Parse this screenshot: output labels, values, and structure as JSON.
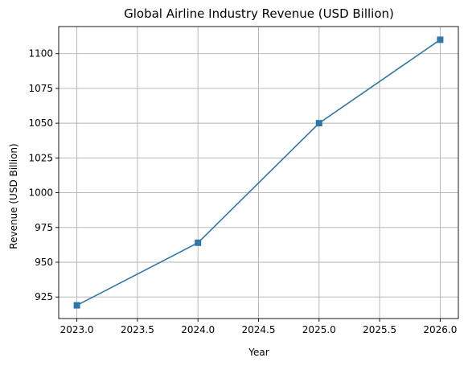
{
  "chart_data": {
    "type": "line",
    "title": "Global Airline Industry Revenue (USD Billion)",
    "xlabel": "Year",
    "ylabel": "Revenue (USD Billion)",
    "x": [
      2023,
      2024,
      2025,
      2026
    ],
    "series": [
      {
        "values": [
          919,
          964,
          1050,
          1110
        ],
        "color": "#2e77a8",
        "marker": "square"
      }
    ],
    "xlim": [
      2022.85,
      2026.15
    ],
    "ylim": [
      909.5,
      1119.5
    ],
    "xticks": [
      2023.0,
      2023.5,
      2024.0,
      2024.5,
      2025.0,
      2025.5,
      2026.0
    ],
    "xtick_labels": [
      "2023.0",
      "2023.5",
      "2024.0",
      "2024.5",
      "2025.0",
      "2025.5",
      "2026.0"
    ],
    "yticks": [
      925,
      950,
      975,
      1000,
      1025,
      1050,
      1075,
      1100
    ],
    "ytick_labels": [
      "925",
      "950",
      "975",
      "1000",
      "1025",
      "1050",
      "1075",
      "1100"
    ],
    "grid": true
  }
}
